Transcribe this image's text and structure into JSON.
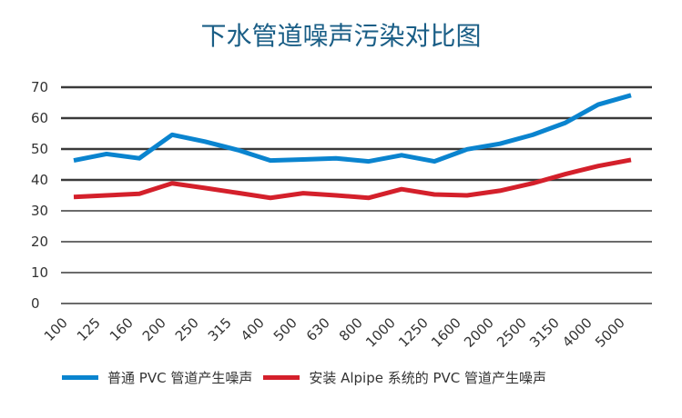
{
  "chart_data": {
    "type": "line",
    "title": "下水管道噪声污染对比图",
    "xlabel": "",
    "ylabel": "",
    "categories": [
      "100",
      "125",
      "160",
      "200",
      "250",
      "315",
      "400",
      "500",
      "630",
      "800",
      "1000",
      "1250",
      "1600",
      "2000",
      "2500",
      "3150",
      "4000",
      "5000"
    ],
    "ylim": [
      0,
      70
    ],
    "yticks": [
      0,
      10,
      20,
      30,
      40,
      50,
      60,
      70
    ],
    "grid": true,
    "legend_position": "bottom",
    "series": [
      {
        "name": "普通 PVC 管道产生噪声",
        "color": "#0a84cf",
        "values": [
          46.3,
          48.4,
          47,
          54.6,
          52.4,
          49.7,
          46.3,
          46.6,
          47,
          46,
          48,
          46,
          49.9,
          51.7,
          54.6,
          58.5,
          64.4,
          67.4
        ]
      },
      {
        "name": "安装 Alpipe 系统的 PVC 管道产生噪声",
        "color": "#d4202b",
        "values": [
          34.5,
          35,
          35.5,
          38.9,
          37.4,
          35.8,
          34.2,
          35.7,
          35,
          34.2,
          37,
          35.3,
          35,
          36.5,
          38.9,
          41.9,
          44.5,
          46.5
        ]
      }
    ]
  }
}
